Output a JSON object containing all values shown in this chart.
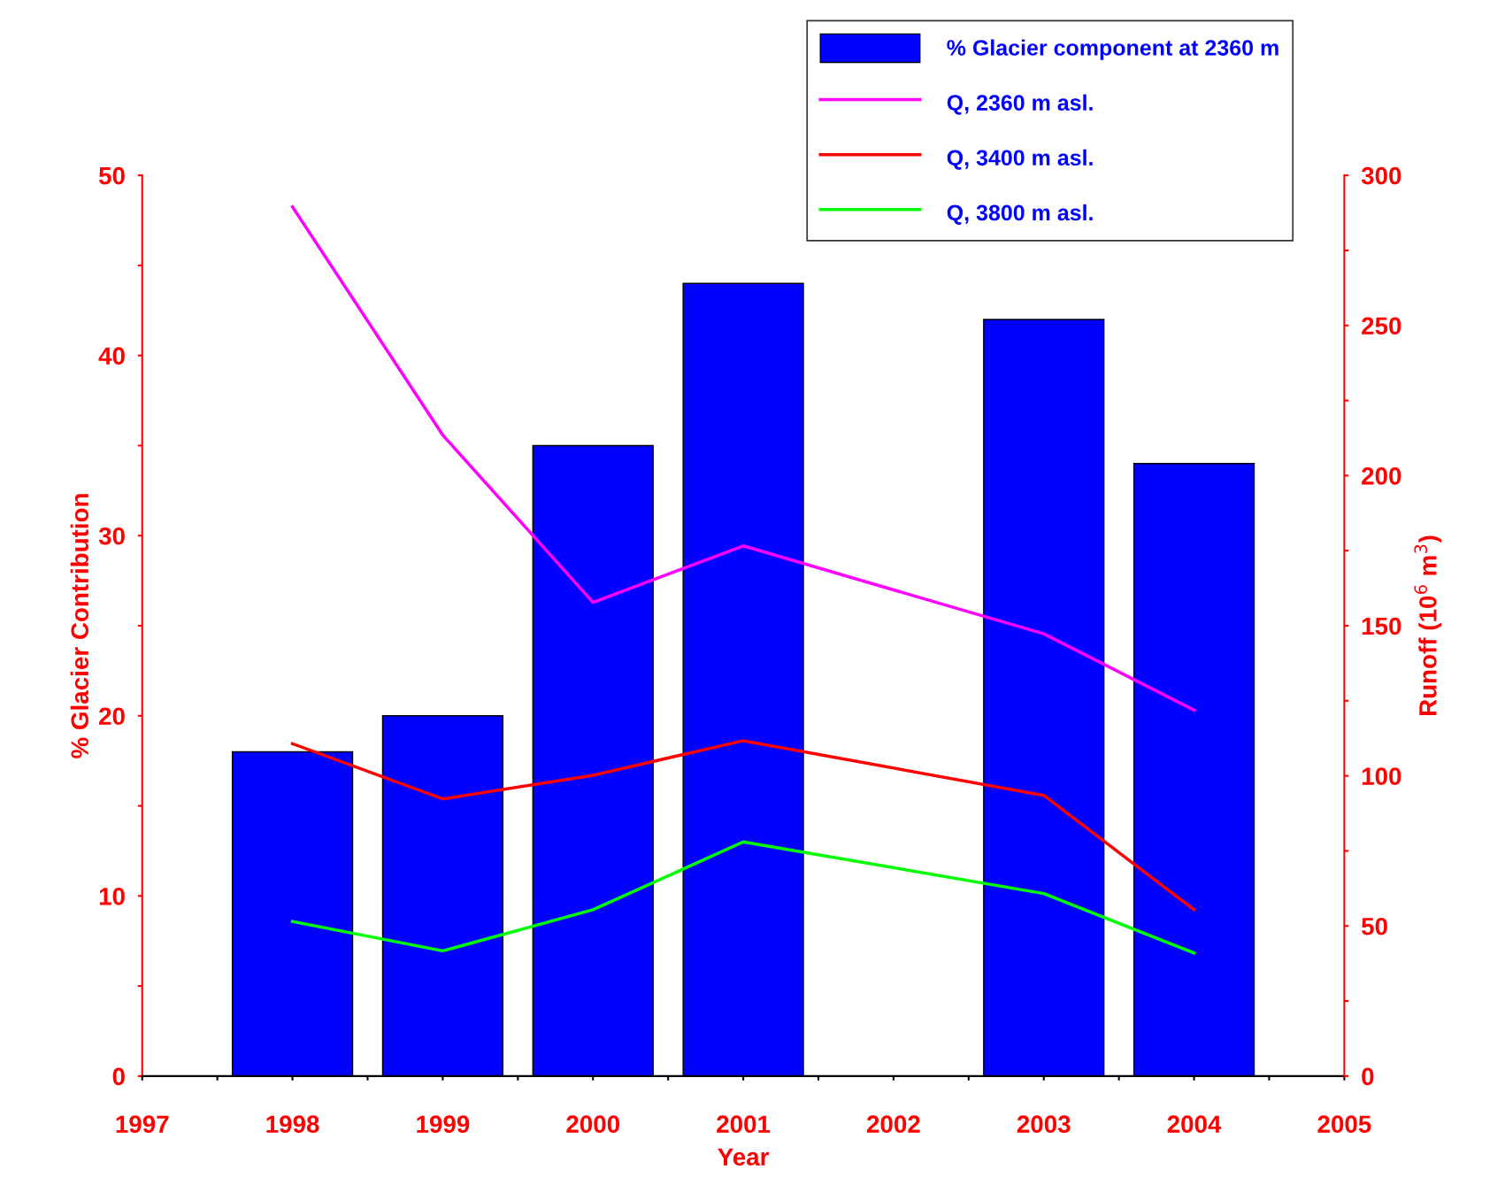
{
  "chart_data": {
    "type": "bar",
    "xlabel": "Year",
    "ylabel": "% Glacier Contribution",
    "y2label": "Runoff (10$^{6}$ m$^{3}$)",
    "x": [
      1998,
      1999,
      2000,
      2001,
      2003,
      2004
    ],
    "series": [
      {
        "name": "% Glacier component at 2360 m",
        "color": "#0000ff",
        "values": [
          18,
          20,
          35,
          44,
          42,
          34
        ]
      },
      {
        "name": "Q, 2360 m asl.",
        "type": "line",
        "axis": "y2",
        "color": "#ff00ff",
        "values": [
          289.5,
          213.5,
          157.8,
          176.6,
          147.3,
          121.9
        ]
      },
      {
        "name": "Q, 3400 m asl.",
        "type": "line",
        "axis": "y2",
        "color": "#ff0000",
        "values": [
          110.7,
          92.3,
          100.2,
          111.7,
          93.5,
          55.4
        ]
      },
      {
        "name": "Q, 3800 m asl.",
        "type": "line",
        "axis": "y2",
        "color": "#00ff00",
        "values": [
          51.5,
          41.7,
          55.4,
          78,
          60.8,
          41
        ]
      }
    ],
    "xlim": [
      1997,
      2005
    ],
    "xticks": [
      1997,
      {
        "value": 1997.5,
        "label": null
      },
      1998,
      {
        "value": 1998.5,
        "label": null
      },
      1999,
      {
        "value": 1999.5,
        "label": null
      },
      2000,
      {
        "value": 2000.5,
        "label": null
      },
      2001,
      {
        "value": 2001.5,
        "label": null
      },
      2002,
      {
        "value": 2002.5,
        "label": null
      },
      2003,
      {
        "value": 2003.5,
        "label": null
      },
      2004,
      {
        "value": 2004.5,
        "label": null
      },
      2005
    ],
    "ylim": [
      0,
      50
    ],
    "yticks": [
      0,
      {
        "value": 5,
        "label": null
      },
      10,
      {
        "value": 15,
        "label": null
      },
      20,
      {
        "value": 25,
        "label": null
      },
      30,
      {
        "value": 35,
        "label": null
      },
      40,
      {
        "value": 45,
        "label": null
      },
      50
    ],
    "y2lim": [
      0,
      300
    ],
    "y2ticks": [
      0,
      {
        "value": 25,
        "label": null
      },
      50,
      {
        "value": 75,
        "label": null
      },
      100,
      {
        "value": 125,
        "label": null
      },
      150,
      {
        "value": 175,
        "label": null
      },
      200,
      {
        "value": 225,
        "label": null
      },
      250,
      {
        "value": 275,
        "label": null
      },
      300
    ],
    "grid": false,
    "legend": "top right",
    "marker": "none",
    "line_style": "solid"
  }
}
